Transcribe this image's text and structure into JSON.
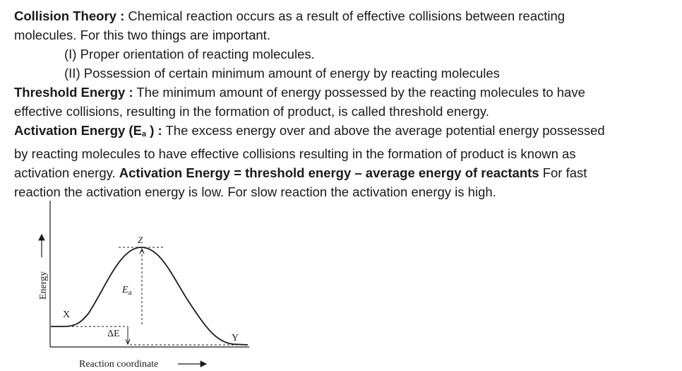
{
  "collision": {
    "term": "Collision Theory :",
    "text_line1": " Chemical reaction occurs as a result of effective collisions between reacting",
    "text_line2": "molecules. For this two things are important.",
    "point1": "(I) Proper orientation of reacting molecules.",
    "point2": "(II) Possession of certain minimum amount of energy by reacting molecules"
  },
  "threshold": {
    "term": "Threshold Energy :",
    "text_line1": " The minimum amount of energy possessed by the reacting molecules to have",
    "text_line2": "effective collisions, resulting in the formation of product, is called threshold energy."
  },
  "activation": {
    "term_prefix": "Activation Energy (E",
    "term_sub": "a",
    "term_suffix": " ) :",
    "text_line1": " The excess energy over and above the average potential energy possessed",
    "text_line2": "by reacting molecules to have effective collisions resulting in the formation of product is known as",
    "text_line3_start": "activation energy. ",
    "formula": "Activation Energy = threshold energy – average energy of reactants",
    "text_line3_end": " For fast",
    "text_line4": "reaction the activation energy is low. For slow reaction the activation energy is high."
  },
  "diagram": {
    "y_axis_label": "Energy",
    "x_axis_label": "Reaction coordinate",
    "point_reactant": "X",
    "point_peak": "Z",
    "point_product": "Y",
    "ea_label_main": "E",
    "ea_label_sub": "a",
    "delta_e_label": "ΔE"
  }
}
